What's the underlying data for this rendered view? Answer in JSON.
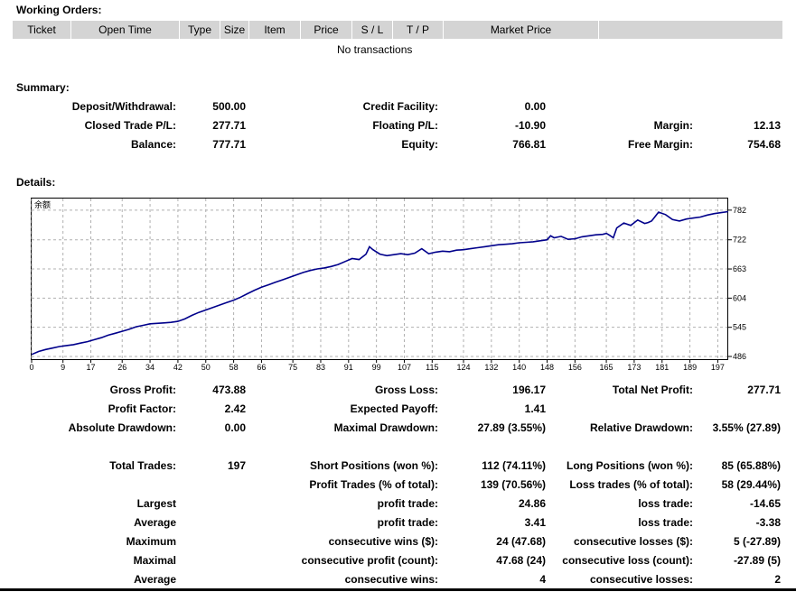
{
  "working_orders": {
    "title": "Working Orders:",
    "columns": [
      "Ticket",
      "Open Time",
      "Type",
      "Size",
      "Item",
      "Price",
      "S / L",
      "T / P",
      "Market Price"
    ],
    "empty_text": "No transactions"
  },
  "summary": {
    "title": "Summary:",
    "deposit_label": "Deposit/Withdrawal:",
    "deposit_value": "500.00",
    "credit_label": "Credit Facility:",
    "credit_value": "0.00",
    "closed_pl_label": "Closed Trade P/L:",
    "closed_pl_value": "277.71",
    "floating_pl_label": "Floating P/L:",
    "floating_pl_value": "-10.90",
    "margin_label": "Margin:",
    "margin_value": "12.13",
    "balance_label": "Balance:",
    "balance_value": "777.71",
    "equity_label": "Equity:",
    "equity_value": "766.81",
    "free_margin_label": "Free Margin:",
    "free_margin_value": "754.68"
  },
  "details": {
    "title": "Details:",
    "gross_profit_label": "Gross Profit:",
    "gross_profit_value": "473.88",
    "gross_loss_label": "Gross Loss:",
    "gross_loss_value": "196.17",
    "total_net_profit_label": "Total Net Profit:",
    "total_net_profit_value": "277.71",
    "profit_factor_label": "Profit Factor:",
    "profit_factor_value": "2.42",
    "expected_payoff_label": "Expected Payoff:",
    "expected_payoff_value": "1.41",
    "absolute_drawdown_label": "Absolute Drawdown:",
    "absolute_drawdown_value": "0.00",
    "maximal_drawdown_label": "Maximal Drawdown:",
    "maximal_drawdown_value": "27.89 (3.55%)",
    "relative_drawdown_label": "Relative Drawdown:",
    "relative_drawdown_value": "3.55% (27.89)",
    "total_trades_label": "Total Trades:",
    "total_trades_value": "197",
    "short_positions_label": "Short Positions (won %):",
    "short_positions_value": "112 (74.11%)",
    "long_positions_label": "Long Positions (won %):",
    "long_positions_value": "85 (65.88%)",
    "profit_trades_label": "Profit Trades (% of total):",
    "profit_trades_value": "139 (70.56%)",
    "loss_trades_label": "Loss trades (% of total):",
    "loss_trades_value": "58 (29.44%)",
    "largest_label": "Largest",
    "largest_profit_label": "profit trade:",
    "largest_profit_value": "24.86",
    "largest_loss_label": "loss trade:",
    "largest_loss_value": "-14.65",
    "average_label": "Average",
    "average_profit_label": "profit trade:",
    "average_profit_value": "3.41",
    "average_loss_label": "loss trade:",
    "average_loss_value": "-3.38",
    "maximum_label": "Maximum",
    "max_cons_wins_label": "consecutive wins ($):",
    "max_cons_wins_value": "24 (47.68)",
    "max_cons_losses_label": "consecutive losses ($):",
    "max_cons_losses_value": "5 (-27.89)",
    "maximal_label": "Maximal",
    "maximal_cons_profit_label": "consecutive profit (count):",
    "maximal_cons_profit_value": "47.68 (24)",
    "maximal_cons_loss_label": "consecutive loss (count):",
    "maximal_cons_loss_value": "-27.89 (5)",
    "average2_label": "Average",
    "avg_cons_wins_label": "consecutive wins:",
    "avg_cons_wins_value": "4",
    "avg_cons_losses_label": "consecutive losses:",
    "avg_cons_losses_value": "2"
  },
  "chart_data": {
    "type": "line",
    "series_label": "余额",
    "line_color": "#00008b",
    "grid": true,
    "ylim": [
      486,
      800
    ],
    "xlim": [
      0,
      200
    ],
    "y_ticks": [
      486,
      545,
      604,
      663,
      722,
      782
    ],
    "x_ticks": [
      0,
      9,
      17,
      26,
      34,
      42,
      50,
      58,
      66,
      75,
      83,
      91,
      99,
      107,
      115,
      124,
      132,
      140,
      148,
      156,
      165,
      173,
      181,
      189,
      197
    ],
    "x": [
      0,
      2,
      4,
      6,
      8,
      10,
      12,
      14,
      16,
      18,
      20,
      22,
      24,
      26,
      28,
      30,
      32,
      34,
      36,
      38,
      40,
      42,
      44,
      46,
      48,
      50,
      52,
      54,
      56,
      58,
      60,
      62,
      64,
      66,
      68,
      70,
      72,
      74,
      76,
      78,
      80,
      82,
      84,
      86,
      88,
      90,
      92,
      94,
      96,
      97,
      98,
      100,
      102,
      104,
      106,
      108,
      110,
      112,
      114,
      116,
      118,
      120,
      122,
      124,
      126,
      128,
      130,
      132,
      134,
      136,
      138,
      140,
      142,
      144,
      146,
      148,
      149,
      150,
      152,
      154,
      156,
      158,
      160,
      162,
      164,
      165,
      166,
      167,
      168,
      170,
      172,
      174,
      176,
      177,
      178,
      180,
      182,
      184,
      186,
      188,
      190,
      192,
      194,
      196,
      198,
      200
    ],
    "y": [
      490,
      496,
      500,
      503,
      506,
      508,
      510,
      513,
      516,
      520,
      524,
      529,
      533,
      537,
      541,
      546,
      549,
      552,
      553,
      554,
      555,
      557,
      562,
      569,
      575,
      580,
      585,
      590,
      595,
      600,
      606,
      613,
      620,
      626,
      631,
      636,
      641,
      646,
      651,
      656,
      660,
      663,
      665,
      668,
      672,
      678,
      684,
      682,
      693,
      708,
      702,
      693,
      690,
      692,
      694,
      692,
      695,
      704,
      694,
      697,
      699,
      698,
      701,
      702,
      704,
      706,
      708,
      710,
      712,
      713,
      714,
      716,
      717,
      718,
      720,
      722,
      730,
      726,
      729,
      723,
      724,
      728,
      730,
      732,
      733,
      735,
      731,
      726,
      746,
      756,
      751,
      762,
      755,
      757,
      760,
      778,
      773,
      763,
      760,
      764,
      766,
      768,
      772,
      775,
      777,
      779
    ]
  }
}
